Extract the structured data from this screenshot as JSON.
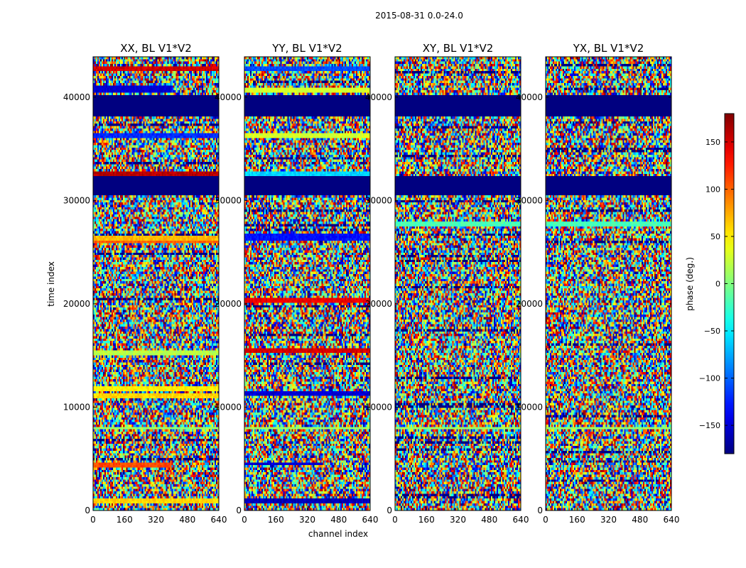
{
  "figure_title": "2015-08-31 0.0-24.0",
  "chart_data": {
    "type": "heatmap",
    "title": "2015-08-31 0.0-24.0",
    "xlabel": "channel index",
    "ylabel": "time index",
    "xlim": [
      0,
      640
    ],
    "ylim": [
      0,
      43900
    ],
    "x_ticks": [
      0,
      160,
      320,
      480,
      640
    ],
    "y_ticks": [
      0,
      10000,
      20000,
      30000,
      40000
    ],
    "colorbar": {
      "label": "phase (deg.)",
      "range": [
        -180,
        180
      ],
      "ticks": [
        -150,
        -100,
        -50,
        0,
        50,
        100,
        150
      ],
      "colormap": "jet"
    },
    "masked_time_ranges": [
      [
        38100,
        40200
      ],
      [
        30500,
        32400
      ]
    ],
    "panels": [
      {
        "title": "XX, BL V1*V2",
        "coherent_bands": [
          {
            "t": [
              42600,
              42900
            ],
            "phase": 150
          },
          {
            "t": [
              40400,
              41200
            ],
            "phase": -150,
            "ch": [
              0,
              400
            ]
          },
          {
            "t": [
              36000,
              36400
            ],
            "phase": -120
          },
          {
            "t": [
              32400,
              32700
            ],
            "phase": 160
          },
          {
            "t": [
              30400,
              30600
            ],
            "phase": 160
          },
          {
            "t": [
              26200,
              26600
            ],
            "phase": 70
          },
          {
            "t": [
              25800,
              26100
            ],
            "phase": 100
          },
          {
            "t": [
              15100,
              15500
            ],
            "phase": 20
          },
          {
            "t": [
              11500,
              11900
            ],
            "phase": 50
          },
          {
            "t": [
              10900,
              11300
            ],
            "phase": 60
          },
          {
            "t": [
              7800,
              8100
            ],
            "phase": 10
          },
          {
            "t": [
              4200,
              4600
            ],
            "phase": 110,
            "ch": [
              0,
              400
            ]
          },
          {
            "t": [
              800,
              1100
            ],
            "phase": 60
          }
        ]
      },
      {
        "title": "YY, BL V1*V2",
        "coherent_bands": [
          {
            "t": [
              42500,
              42900
            ],
            "phase": -110
          },
          {
            "t": [
              40400,
              41000
            ],
            "phase": 30
          },
          {
            "t": [
              36000,
              36400
            ],
            "phase": 30
          },
          {
            "t": [
              32400,
              32800
            ],
            "phase": -60
          },
          {
            "t": [
              26200,
              26700
            ],
            "phase": -130
          },
          {
            "t": [
              20200,
              20600
            ],
            "phase": 140
          },
          {
            "t": [
              15200,
              15600
            ],
            "phase": 150
          },
          {
            "t": [
              11000,
              11600
            ],
            "phase": -150
          },
          {
            "t": [
              7800,
              8100
            ],
            "phase": 10
          },
          {
            "t": [
              4300,
              4700
            ],
            "phase": -150,
            "ch": [
              0,
              400
            ]
          },
          {
            "t": [
              800,
              1100
            ],
            "phase": -160
          }
        ]
      },
      {
        "title": "XY, BL V1*V2",
        "coherent_bands": [
          {
            "t": [
              27600,
              27900
            ],
            "phase": -20
          },
          {
            "t": [
              7800,
              8100
            ],
            "phase": 10
          }
        ]
      },
      {
        "title": "YX, BL V1*V2",
        "coherent_bands": [
          {
            "t": [
              27600,
              27900
            ],
            "phase": -20
          },
          {
            "t": [
              7800,
              8100
            ],
            "phase": 10
          }
        ]
      }
    ]
  }
}
